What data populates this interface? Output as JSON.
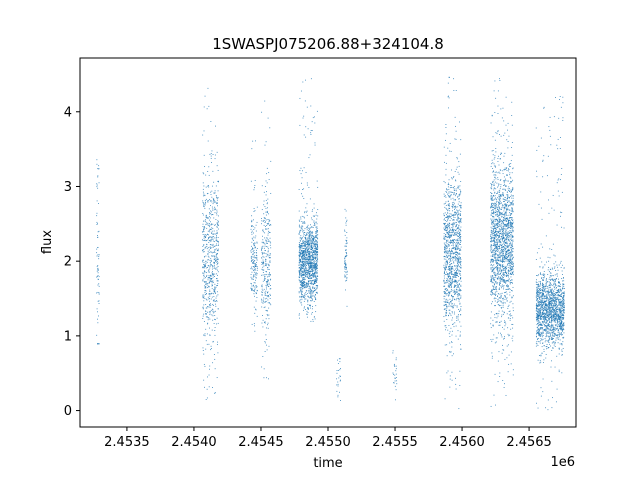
{
  "chart_data": {
    "type": "scatter",
    "title": "1SWASPJ075206.88+324104.8",
    "xlabel": "time",
    "ylabel": "flux",
    "x_offset_label": "1e6",
    "xlim": [
      2453150,
      2456850
    ],
    "ylim": [
      -0.22,
      4.72
    ],
    "grid": false,
    "x_ticks": [
      2453500,
      2454000,
      2454500,
      2455000,
      2455500,
      2456000,
      2456500
    ],
    "x_tick_labels": [
      "2.4535",
      "2.4540",
      "2.4545",
      "2.4550",
      "2.4555",
      "2.4560",
      "2.4565"
    ],
    "y_ticks": [
      0,
      1,
      2,
      3,
      4
    ],
    "y_tick_labels": [
      "0",
      "1",
      "2",
      "3",
      "4"
    ],
    "marker_color": "#1f77b4",
    "clusters": [
      {
        "x": [
          2453270,
          2453290
        ],
        "y_center": 2.0,
        "y_spread": 0.8,
        "n": 70,
        "y_range": [
          0.9,
          3.7
        ]
      },
      {
        "x": [
          2454060,
          2454180
        ],
        "y_center": 2.05,
        "y_spread": 0.6,
        "n": 650,
        "y_range": [
          0.15,
          4.4
        ]
      },
      {
        "x": [
          2454420,
          2454470
        ],
        "y_center": 2.0,
        "y_spread": 0.3,
        "n": 180,
        "y_range": [
          1.0,
          3.8
        ]
      },
      {
        "x": [
          2454500,
          2454570
        ],
        "y_center": 2.0,
        "y_spread": 0.5,
        "n": 300,
        "y_range": [
          0.35,
          4.45
        ]
      },
      {
        "x": [
          2454780,
          2454920
        ],
        "y_center": 2.0,
        "y_spread": 0.28,
        "n": 1300,
        "y_range": [
          1.2,
          4.45
        ]
      },
      {
        "x": [
          2455060,
          2455090
        ],
        "y_center": 0.45,
        "y_spread": 0.2,
        "n": 25,
        "y_range": [
          0.1,
          0.7
        ]
      },
      {
        "x": [
          2455120,
          2455140
        ],
        "y_center": 2.1,
        "y_spread": 0.25,
        "n": 70,
        "y_range": [
          1.4,
          2.7
        ]
      },
      {
        "x": [
          2455480,
          2455510
        ],
        "y_center": 0.45,
        "y_spread": 0.15,
        "n": 25,
        "y_range": [
          0.15,
          0.85
        ]
      },
      {
        "x": [
          2455860,
          2455990
        ],
        "y_center": 2.1,
        "y_spread": 0.5,
        "n": 1100,
        "y_range": [
          0.0,
          4.5
        ]
      },
      {
        "x": [
          2456210,
          2456380
        ],
        "y_center": 2.25,
        "y_spread": 0.5,
        "n": 1700,
        "y_range": [
          0.05,
          4.45
        ]
      },
      {
        "x": [
          2456550,
          2456760
        ],
        "y_center": 1.35,
        "y_spread": 0.25,
        "n": 1600,
        "y_range": [
          0.0,
          4.25
        ]
      }
    ]
  }
}
